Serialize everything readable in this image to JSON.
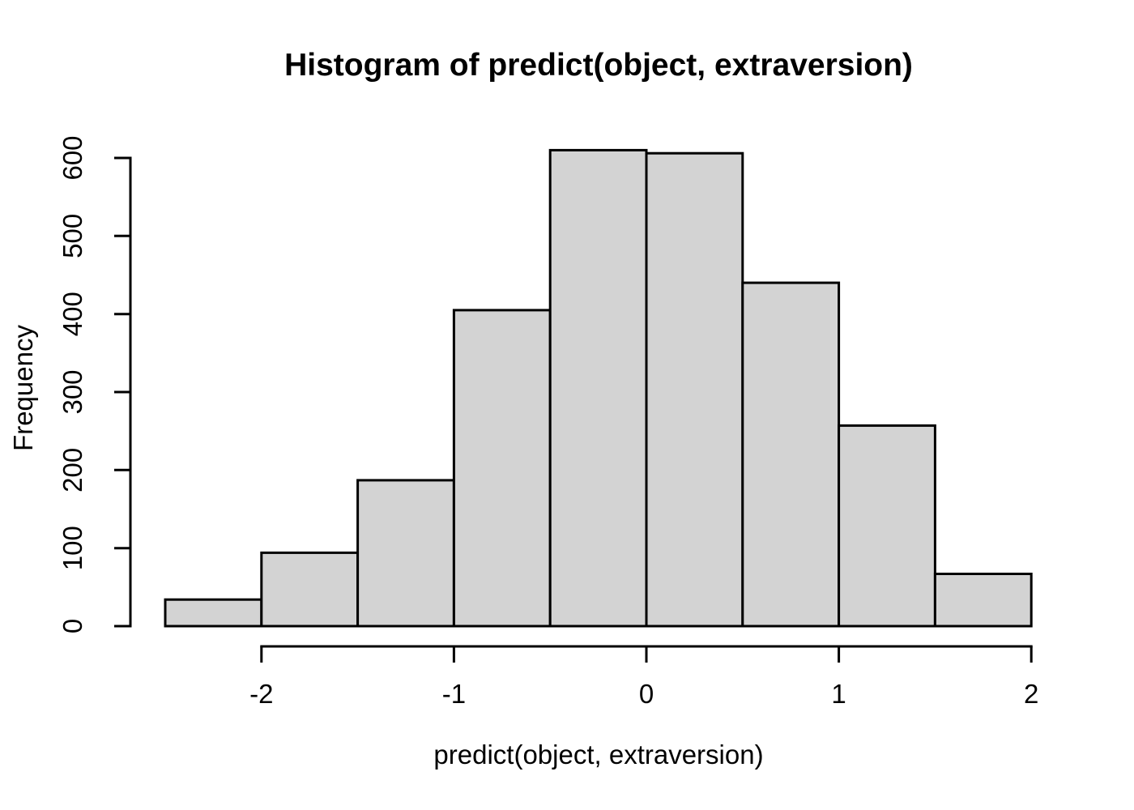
{
  "chart_data": {
    "type": "bar",
    "subtype": "histogram",
    "title": "Histogram of predict(object, extraversion)",
    "xlabel": "predict(object, extraversion)",
    "ylabel": "Frequency",
    "bin_breaks": [
      -2.5,
      -2.0,
      -1.5,
      -1.0,
      -0.5,
      0.0,
      0.5,
      1.0,
      1.5,
      2.0
    ],
    "counts": [
      34,
      94,
      187,
      405,
      610,
      606,
      440,
      257,
      67
    ],
    "x_ticks": [
      {
        "value": -2,
        "label": "-2"
      },
      {
        "value": -1,
        "label": "-1"
      },
      {
        "value": 0,
        "label": "0"
      },
      {
        "value": 1,
        "label": "1"
      },
      {
        "value": 2,
        "label": "2"
      }
    ],
    "y_ticks": [
      {
        "value": 0,
        "label": "0"
      },
      {
        "value": 100,
        "label": "100"
      },
      {
        "value": 200,
        "label": "200"
      },
      {
        "value": 300,
        "label": "300"
      },
      {
        "value": 400,
        "label": "400"
      },
      {
        "value": 500,
        "label": "500"
      },
      {
        "value": 600,
        "label": "600"
      }
    ],
    "xlim": [
      -2.68,
      2.18
    ],
    "ylim": [
      0,
      612
    ],
    "grid": false,
    "legend_position": "none",
    "colors": {
      "bar_fill": "#d3d3d3",
      "bar_border": "#000000",
      "axis": "#000000",
      "text": "#000000",
      "background": "#ffffff"
    }
  }
}
